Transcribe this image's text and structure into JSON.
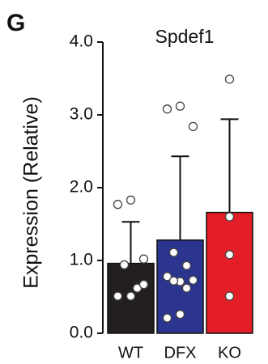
{
  "chart_data": {
    "type": "bar",
    "panel_label": "G",
    "title": "Spdef1",
    "y_label": "Expression (Relative)",
    "categories": [
      "WT",
      "DFX",
      "KO"
    ],
    "values": [
      0.96,
      1.28,
      1.66
    ],
    "errors": [
      0.57,
      1.15,
      1.28
    ],
    "colors": [
      "#231f20",
      "#2b3590",
      "#e31e26"
    ],
    "points": [
      [
        1.77,
        1.83,
        1.02,
        0.94,
        0.62,
        0.51,
        0.51,
        0.67
      ],
      [
        3.08,
        3.12,
        2.84,
        1.11,
        0.93,
        0.78,
        0.71,
        0.73,
        0.72,
        0.62,
        0.21,
        0.26
      ],
      [
        3.49,
        1.6,
        1.08,
        0.51
      ]
    ],
    "ylim": [
      0,
      4
    ],
    "yticks": [
      {
        "value": 0,
        "label": "0.0"
      },
      {
        "value": 1,
        "label": "1.0"
      },
      {
        "value": 2,
        "label": "2.0"
      },
      {
        "value": 3,
        "label": "3.0"
      },
      {
        "value": 4,
        "label": "4.0"
      }
    ]
  }
}
